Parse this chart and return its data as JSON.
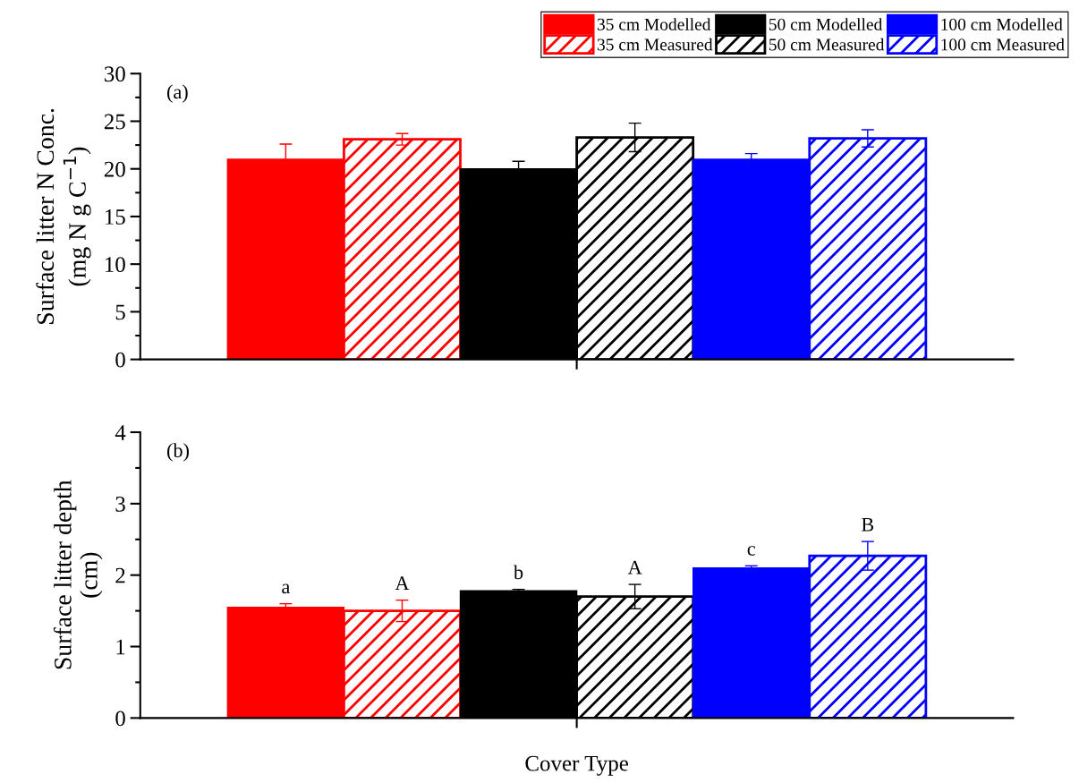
{
  "chart_data": [
    {
      "type": "bar",
      "categories": [
        null
      ],
      "ylabel": "Surface litter N Conc.\n(mg N g C$^{−1}$)",
      "ylim": [
        0,
        30
      ],
      "yticks": [
        0,
        5,
        10,
        15,
        20,
        25,
        30
      ],
      "tick_labels": "y",
      "grid": false,
      "legend": "top right",
      "annotations": [
        "(a)"
      ],
      "series": [
        {
          "name": "35 cm Modelled",
          "color": "#ff0000",
          "values": [
            21.0
          ],
          "errors": [
            1.6
          ]
        },
        {
          "name": "35 cm Measured",
          "color": "#ff0000",
          "values": [
            23.1
          ],
          "errors": [
            0.6
          ]
        },
        {
          "name": "50 cm Modelled",
          "color": "#000000",
          "values": [
            20.0
          ],
          "errors": [
            0.8
          ]
        },
        {
          "name": "50 cm Measured",
          "color": "#000000",
          "values": [
            23.3
          ],
          "errors": [
            1.5
          ]
        },
        {
          "name": "100 cm Modelled",
          "color": "#0000ff",
          "values": [
            21.0
          ],
          "errors": [
            0.6
          ]
        },
        {
          "name": "100 cm Measured",
          "color": "#0000ff",
          "values": [
            23.2
          ],
          "errors": [
            0.9
          ]
        }
      ]
    },
    {
      "type": "bar",
      "categories": [
        null
      ],
      "ylabel": "Surface litter depth\n(cm)",
      "xlabel": "Cover Type",
      "ylim": [
        0,
        4
      ],
      "yticks": [
        0,
        1,
        2,
        3,
        4
      ],
      "tick_labels": "y",
      "grid": false,
      "annotations": [
        "(b)",
        {
          "text": "a",
          "y": 1.6
        },
        {
          "text": "A",
          "y": 1.65
        },
        {
          "text": "b",
          "y": 1.8
        },
        {
          "text": "A",
          "y": 1.87
        },
        {
          "text": "c",
          "y": 2.13
        },
        {
          "text": "B",
          "y": 2.47
        }
      ],
      "series": [
        {
          "color": "#ff0000",
          "values": [
            1.55
          ],
          "errors": [
            0.05
          ]
        },
        {
          "color": "#ff0000",
          "values": [
            1.5
          ],
          "errors": [
            0.15
          ]
        },
        {
          "color": "#000000",
          "values": [
            1.78
          ],
          "errors": [
            0.02
          ]
        },
        {
          "color": "#000000",
          "values": [
            1.7
          ],
          "errors": [
            0.17
          ]
        },
        {
          "color": "#0000ff",
          "values": [
            2.1
          ],
          "errors": [
            0.03
          ]
        },
        {
          "color": "#0000ff",
          "values": [
            2.27
          ],
          "errors": [
            0.2
          ]
        }
      ]
    }
  ]
}
